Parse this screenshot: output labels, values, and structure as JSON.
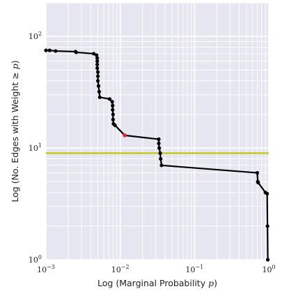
{
  "chart_data": {
    "type": "line",
    "xscale": "log",
    "yscale": "log",
    "xlim": [
      0.001,
      1
    ],
    "ylim": [
      1,
      200
    ],
    "grid": true,
    "xlabel": {
      "prefix": "Log (Marginal Probability ",
      "var": "p",
      "suffix": ")"
    },
    "ylabel": {
      "prefix": "Log (No. Edges with Weight ≥ ",
      "var": "p",
      "suffix": ")"
    },
    "x_ticks": [
      {
        "value": 0.001,
        "base": "10",
        "exp": "−3"
      },
      {
        "value": 0.01,
        "base": "10",
        "exp": "−2"
      },
      {
        "value": 0.1,
        "base": "10",
        "exp": "−1"
      },
      {
        "value": 1,
        "base": "10",
        "exp": "0"
      }
    ],
    "y_ticks": [
      {
        "value": 1,
        "base": "10",
        "exp": "0"
      },
      {
        "value": 10,
        "base": "10",
        "exp": "1"
      },
      {
        "value": 100,
        "base": "10",
        "exp": "2"
      }
    ],
    "hline": {
      "y": 9,
      "color": "#c8c81e"
    },
    "series_color": "#000000",
    "highlight": {
      "x": 0.0115,
      "y": 13,
      "color": "#e8243c"
    },
    "points": [
      {
        "x": 0.001,
        "y": 75
      },
      {
        "x": 0.00112,
        "y": 75
      },
      {
        "x": 0.00135,
        "y": 74
      },
      {
        "x": 0.0025,
        "y": 73
      },
      {
        "x": 0.00255,
        "y": 72
      },
      {
        "x": 0.0044,
        "y": 70
      },
      {
        "x": 0.0048,
        "y": 68
      },
      {
        "x": 0.0049,
        "y": 64
      },
      {
        "x": 0.0049,
        "y": 60
      },
      {
        "x": 0.0049,
        "y": 56
      },
      {
        "x": 0.0049,
        "y": 52
      },
      {
        "x": 0.005,
        "y": 48
      },
      {
        "x": 0.005,
        "y": 44
      },
      {
        "x": 0.005,
        "y": 40
      },
      {
        "x": 0.0051,
        "y": 36
      },
      {
        "x": 0.0052,
        "y": 32
      },
      {
        "x": 0.0053,
        "y": 28.5
      },
      {
        "x": 0.0072,
        "y": 27.5
      },
      {
        "x": 0.0078,
        "y": 26
      },
      {
        "x": 0.0079,
        "y": 24
      },
      {
        "x": 0.0079,
        "y": 22
      },
      {
        "x": 0.008,
        "y": 20
      },
      {
        "x": 0.008,
        "y": 18
      },
      {
        "x": 0.0081,
        "y": 16.5
      },
      {
        "x": 0.0085,
        "y": 16
      },
      {
        "x": 0.0115,
        "y": 13
      },
      {
        "x": 0.033,
        "y": 12
      },
      {
        "x": 0.033,
        "y": 11
      },
      {
        "x": 0.0335,
        "y": 10
      },
      {
        "x": 0.0345,
        "y": 9
      },
      {
        "x": 0.035,
        "y": 8
      },
      {
        "x": 0.036,
        "y": 7
      },
      {
        "x": 0.7,
        "y": 6
      },
      {
        "x": 0.71,
        "y": 5
      },
      {
        "x": 0.72,
        "y": 4.9
      },
      {
        "x": 0.9,
        "y": 4
      },
      {
        "x": 0.95,
        "y": 3.9
      },
      {
        "x": 0.96,
        "y": 2
      },
      {
        "x": 0.97,
        "y": 1
      }
    ]
  }
}
